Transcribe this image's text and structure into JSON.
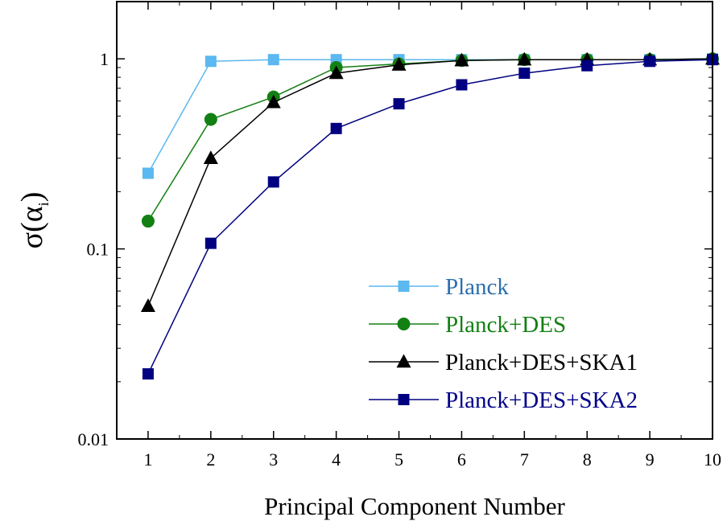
{
  "chart_data": {
    "type": "line",
    "xlabel": "Principal Component Number",
    "ylabel_main": "σ(α",
    "ylabel_sub": "i",
    "ylabel_close": ")",
    "yscale": "log",
    "xlim": [
      0.5,
      10
    ],
    "ylim": [
      0.01,
      2
    ],
    "x_ticks": [
      "1",
      "2",
      "3",
      "4",
      "5",
      "6",
      "7",
      "8",
      "9",
      "10"
    ],
    "y_ticks": [
      {
        "value": 0.01,
        "label": "0.01"
      },
      {
        "value": 0.1,
        "label": "0.1"
      },
      {
        "value": 1,
        "label": "1"
      }
    ],
    "legend_position": "bottom-right",
    "x": [
      1,
      2,
      3,
      4,
      5,
      6,
      7,
      8,
      9,
      10
    ],
    "series": [
      {
        "name": "Planck",
        "color": "#5BB8F0",
        "text_color": "#2C6FAE",
        "marker": "square",
        "values": [
          0.25,
          0.97,
          0.99,
          0.99,
          0.99,
          0.99,
          0.99,
          0.99,
          0.99,
          1.0
        ]
      },
      {
        "name": "Planck+DES",
        "color": "#138013",
        "text_color": "#138013",
        "marker": "circle",
        "values": [
          0.14,
          0.48,
          0.63,
          0.9,
          0.94,
          0.98,
          0.99,
          0.99,
          0.99,
          1.0
        ]
      },
      {
        "name": "Planck+DES+SKA1",
        "color": "#000000",
        "text_color": "#000000",
        "marker": "triangle",
        "values": [
          0.05,
          0.3,
          0.59,
          0.84,
          0.93,
          0.98,
          0.99,
          0.99,
          0.99,
          1.0
        ]
      },
      {
        "name": "Planck+DES+SKA2",
        "color": "#000080",
        "text_color": "#00008B",
        "marker": "square",
        "values": [
          0.022,
          0.107,
          0.225,
          0.43,
          0.58,
          0.73,
          0.84,
          0.92,
          0.97,
          0.99
        ]
      }
    ]
  }
}
